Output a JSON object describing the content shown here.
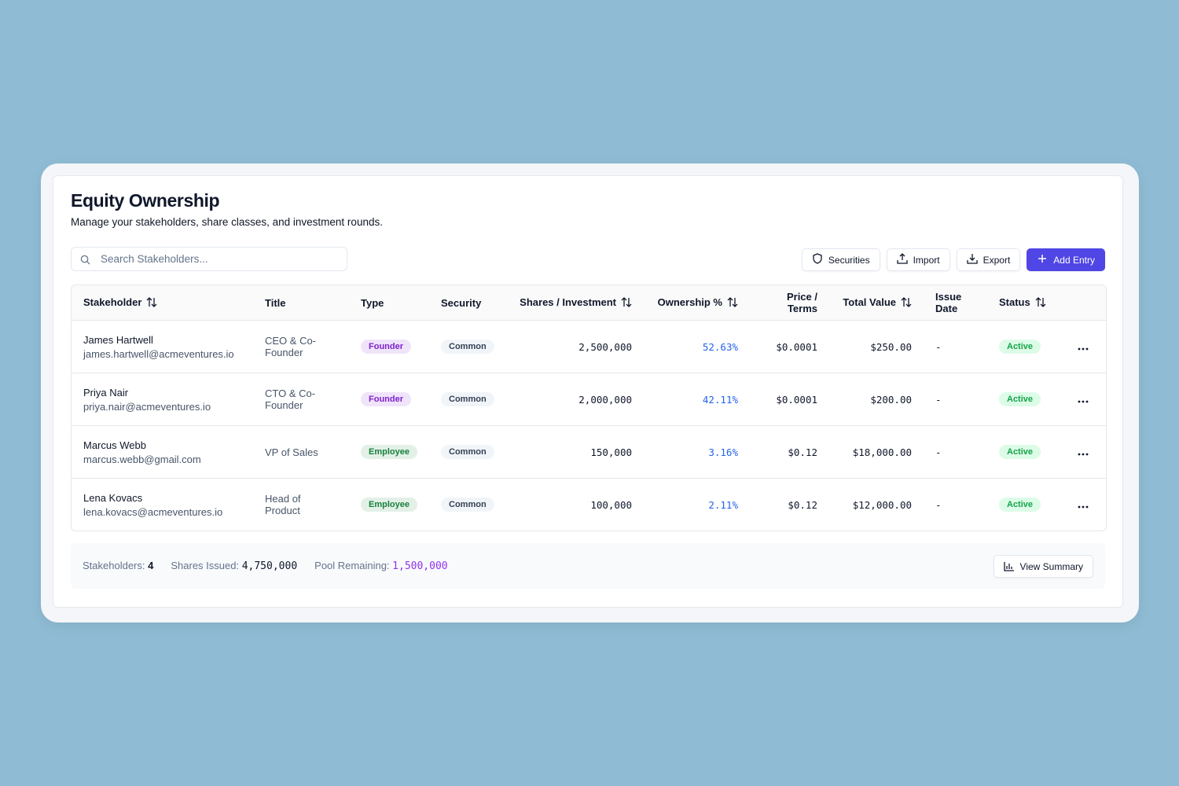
{
  "header": {
    "title": "Equity Ownership",
    "subtitle": "Manage your stakeholders, share classes, and investment rounds."
  },
  "toolbar": {
    "search_placeholder": "Search Stakeholders...",
    "buttons": [
      "Securities",
      "Import",
      "Export",
      "Add Entry"
    ]
  },
  "table": {
    "columns": [
      {
        "label": "Stakeholder",
        "sortable": true
      },
      {
        "label": "Title",
        "sortable": false
      },
      {
        "label": "Type",
        "sortable": false
      },
      {
        "label": "Security",
        "sortable": false
      },
      {
        "label": "Shares / Investment",
        "sortable": true
      },
      {
        "label": "Ownership %",
        "sortable": true
      },
      {
        "label": "Price / Terms",
        "sortable": false
      },
      {
        "label": "Total Value",
        "sortable": true
      },
      {
        "label": "Issue Date",
        "sortable": false
      },
      {
        "label": "Status",
        "sortable": true
      }
    ],
    "rows": [
      {
        "name": "James Hartwell",
        "email": "james.hartwell@acmeventures.io",
        "title": "CEO & Co-Founder",
        "type": "Founder",
        "type_color": "#7e22ce",
        "security": "Common",
        "shares": "2,500,000",
        "ownership": "52.63%",
        "price": "$0.0001",
        "total": "$250.00",
        "issue_date": "-",
        "status": "Active"
      },
      {
        "name": "Priya Nair",
        "email": "priya.nair@acmeventures.io",
        "title": "CTO & Co-Founder",
        "type": "Founder",
        "type_color": "#7e22ce",
        "security": "Common",
        "shares": "2,000,000",
        "ownership": "42.11%",
        "price": "$0.0001",
        "total": "$200.00",
        "issue_date": "-",
        "status": "Active"
      },
      {
        "name": "Marcus Webb",
        "email": "marcus.webb@gmail.com",
        "title": "VP of Sales",
        "type": "Employee",
        "type_color": "#15803d",
        "security": "Common",
        "shares": "150,000",
        "ownership": "3.16%",
        "price": "$0.12",
        "total": "$18,000.00",
        "issue_date": "-",
        "status": "Active"
      },
      {
        "name": "Lena Kovacs",
        "email": "lena.kovacs@acmeventures.io",
        "title": "Head of Product",
        "type": "Employee",
        "type_color": "#15803d",
        "security": "Common",
        "shares": "100,000",
        "ownership": "2.11%",
        "price": "$0.12",
        "total": "$12,000.00",
        "issue_date": "-",
        "status": "Active"
      }
    ]
  },
  "footer": {
    "stakeholders_label": "Stakeholders:",
    "stakeholders": "4",
    "shares_label": "Shares Issued:",
    "shares": "4,750,000",
    "pool_label": "Pool Remaining:",
    "pool": "1,500,000",
    "button": "View Summary"
  }
}
